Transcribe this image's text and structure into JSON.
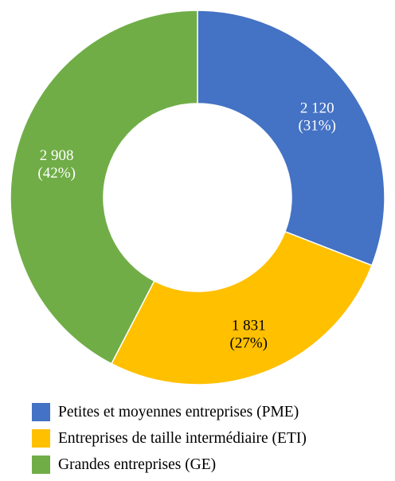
{
  "chart_data": {
    "type": "donut",
    "categories": [
      "Petites et moyennes entreprises (PME)",
      "Entreprises de taille intermédiaire (ETI)",
      "Grandes entreprises (GE)"
    ],
    "values": [
      2120,
      1831,
      2908
    ],
    "value_labels": [
      "2 120",
      "1 831",
      "2 908"
    ],
    "percent_labels": [
      "(31%)",
      "(27%)",
      "(42%)"
    ],
    "colors": [
      "#4472C4",
      "#FFC000",
      "#70AD47"
    ],
    "label_colors": [
      "#ffffff",
      "#000000",
      "#ffffff"
    ],
    "start_angle_deg": 0,
    "direction": "clockwise",
    "legend_position": "bottom"
  },
  "legend": {
    "items": [
      {
        "label": "Petites et moyennes entreprises (PME)",
        "color": "#4472C4"
      },
      {
        "label": "Entreprises de taille intermédiaire (ETI)",
        "color": "#FFC000"
      },
      {
        "label": "Grandes entreprises (GE)",
        "color": "#70AD47"
      }
    ]
  }
}
